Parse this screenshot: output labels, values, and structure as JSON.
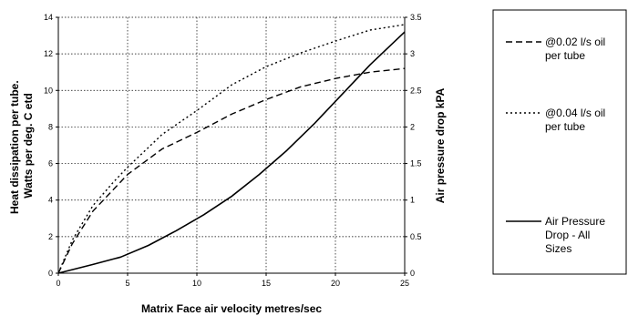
{
  "chart_data": {
    "type": "line",
    "x_label": "Matrix Face air velocity metres/sec",
    "y_left_label_line1": "Heat dissipation per tube.",
    "y_left_label_line2": "Watts per deg. C etd",
    "y_right_label": "Air pressure drop kPA",
    "x_range": [
      0,
      25
    ],
    "y_left_range": [
      0,
      14
    ],
    "y_right_range": [
      0,
      3.5
    ],
    "x_ticks": [
      "0",
      "5",
      "10",
      "15",
      "20",
      "25"
    ],
    "y_left_ticks": [
      "0",
      "2",
      "4",
      "6",
      "8",
      "10",
      "12",
      "14"
    ],
    "y_right_ticks": [
      "0",
      "0.5",
      "1",
      "1.5",
      "2",
      "2.5",
      "3",
      "3.5"
    ],
    "grid": "vertical and horizontal dotted",
    "legend_position": "right",
    "series": [
      {
        "name": "@0.02 l/s oil per tube",
        "legend_lines": [
          "@0.02 l/s oil",
          "per tube"
        ],
        "axis": "left",
        "style": "dashed",
        "x": [
          0,
          1,
          2.5,
          4,
          5,
          7.5,
          10,
          12.5,
          15,
          17.5,
          20,
          22.5,
          25
        ],
        "y": [
          0,
          1.6,
          3.4,
          4.6,
          5.4,
          6.8,
          7.7,
          8.7,
          9.5,
          10.2,
          10.65,
          11.0,
          11.2
        ]
      },
      {
        "name": "@0.04 l/s oil per tube",
        "legend_lines": [
          "@0.04 l/s oil",
          "per tube"
        ],
        "axis": "left",
        "style": "dotted",
        "x": [
          0,
          1,
          2.5,
          4,
          5,
          7.5,
          10,
          12.5,
          15,
          17.5,
          20,
          22.5,
          25
        ],
        "y": [
          0,
          1.8,
          3.7,
          5.0,
          5.8,
          7.6,
          8.9,
          10.3,
          11.3,
          12.05,
          12.7,
          13.3,
          13.6
        ]
      },
      {
        "name": "Air Pressure Drop - All Sizes",
        "legend_lines": [
          "Air Pressure",
          "Drop - All",
          "Sizes"
        ],
        "axis": "right",
        "style": "solid",
        "x": [
          0,
          2.5,
          4.5,
          6.5,
          8.5,
          10.5,
          12.5,
          14.5,
          16.5,
          18.5,
          20.5,
          22.5,
          25
        ],
        "y": [
          0,
          0.12,
          0.22,
          0.38,
          0.58,
          0.8,
          1.05,
          1.35,
          1.68,
          2.05,
          2.45,
          2.85,
          3.3
        ]
      }
    ]
  }
}
